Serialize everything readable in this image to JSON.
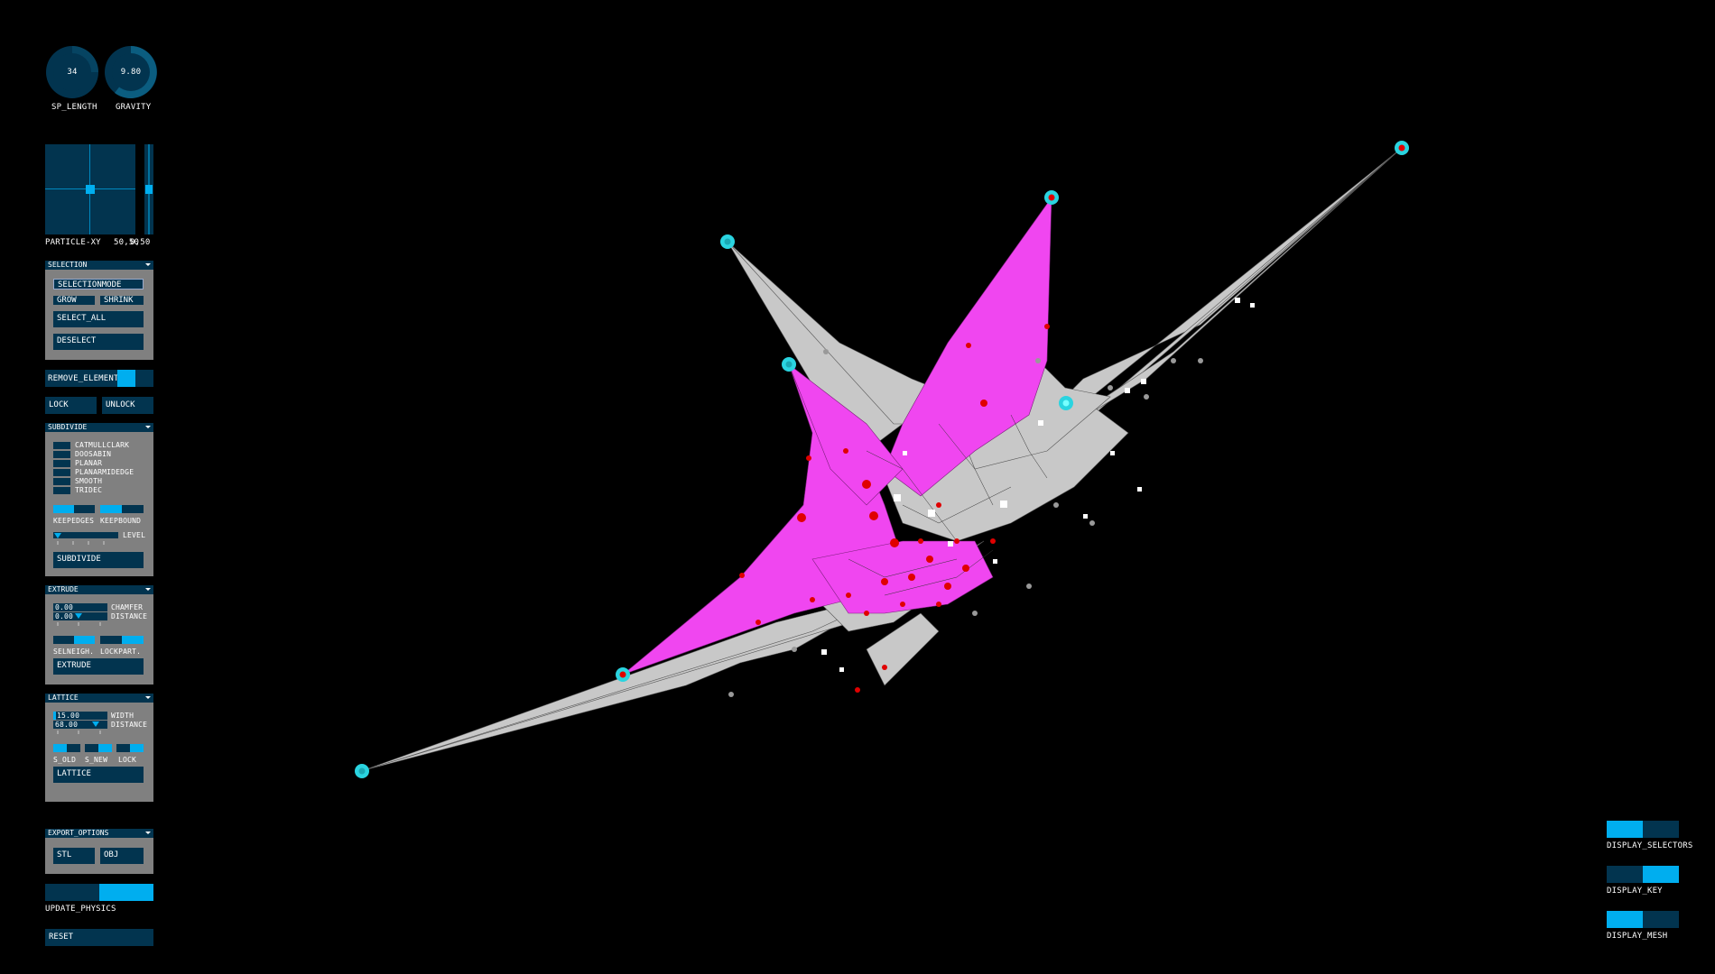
{
  "knobs": [
    {
      "label": "SP_LENGTH",
      "value": "34",
      "fraction": 0.25
    },
    {
      "label": "GRAVITY",
      "value": "9.80",
      "fraction": 0.55
    }
  ],
  "particle": {
    "label": "PARTICLE-XY",
    "xy_value": "50,50",
    "z_value": "0,50"
  },
  "selection": {
    "header": "SELECTION",
    "mode": "SELECTIONMODE",
    "grow": "GROW",
    "shrink": "SHRINK",
    "select_all": "SELECT_ALL",
    "deselect": "DESELECT"
  },
  "remove_element": "REMOVE_ELEMENT",
  "lock": "LOCK",
  "unlock": "UNLOCK",
  "subdivide": {
    "header": "SUBDIVIDE",
    "options": [
      "CATMULLCLARK",
      "DOOSABIN",
      "PLANAR",
      "PLANARMIDEDGE",
      "SMOOTH",
      "TRIDEC"
    ],
    "keepedges": "KEEPEDGES",
    "keepbound": "KEEPBOUND",
    "level": "LEVEL",
    "button": "SUBDIVIDE"
  },
  "extrude": {
    "header": "EXTRUDE",
    "chamfer_value": "0.00",
    "chamfer": "CHAMFER",
    "distance_value": "0.00",
    "distance": "DISTANCE",
    "selneigh": "SELNEIGH.",
    "lockpart": "LOCKPART.",
    "button": "EXTRUDE"
  },
  "lattice": {
    "header": "LATTICE",
    "width_value": "15.00",
    "width": "WIDTH",
    "distance_value": "68.00",
    "distance": "DISTANCE",
    "s_old": "S_OLD",
    "s_new": "S_NEW",
    "lock": "LOCK",
    "button": "LATTICE"
  },
  "export": {
    "header": "EXPORT_OPTIONS",
    "stl": "STL",
    "obj": "OBJ"
  },
  "update_physics": "UPDATE_PHYSICS",
  "reset": "RESET",
  "display": {
    "selectors": "DISPLAY_SELECTORS",
    "key": "DISPLAY_KEY",
    "mesh": "DISPLAY_MESH"
  },
  "colors": {
    "accent": "#00aeef",
    "control_bg": "#02344f",
    "panel_bg": "#808080",
    "mesh_gray": "#c8c8c8",
    "mesh_magenta": "#f046f0",
    "vertex_red": "#e00000",
    "anchor_cyan": "#2ad4e0"
  }
}
